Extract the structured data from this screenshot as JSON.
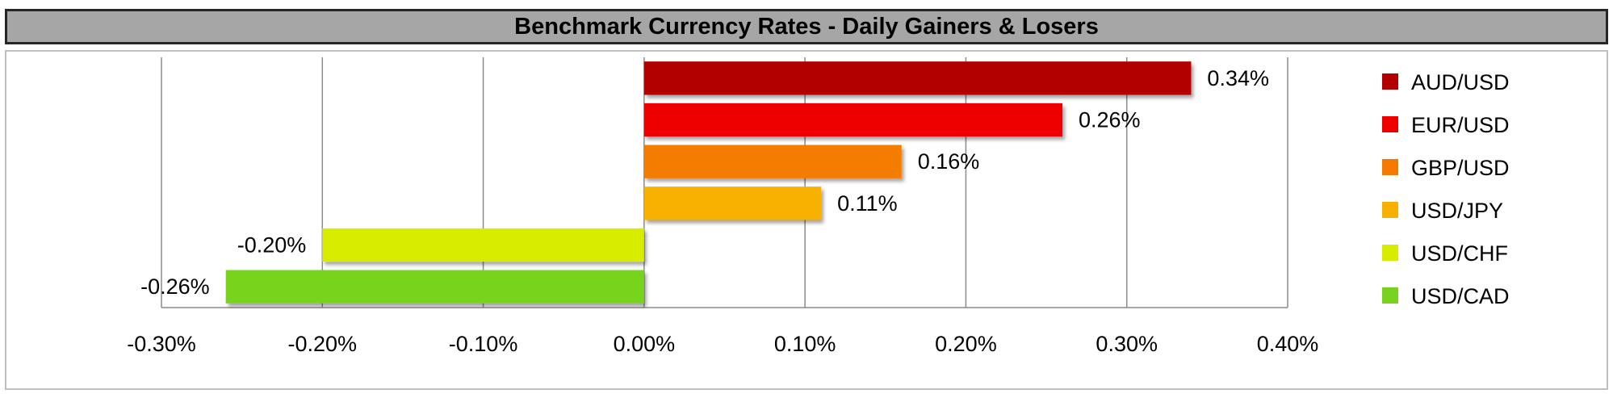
{
  "chart_data": {
    "type": "bar",
    "orientation": "horizontal",
    "title": "Benchmark Currency Rates - Daily Gainers & Losers",
    "categories": [
      "AUD/USD",
      "EUR/USD",
      "GBP/USD",
      "USD/JPY",
      "USD/CHF",
      "USD/CAD"
    ],
    "values": [
      0.34,
      0.26,
      0.16,
      0.11,
      -0.2,
      -0.26
    ],
    "value_labels": [
      "0.34%",
      "0.26%",
      "0.16%",
      "0.11%",
      "-0.20%",
      "-0.26%"
    ],
    "colors": [
      "#b20000",
      "#ee0000",
      "#f47b00",
      "#f7b000",
      "#d8ec00",
      "#77d31f"
    ],
    "xlim": [
      -0.3,
      0.4
    ],
    "xticks": [
      -0.3,
      -0.2,
      -0.1,
      0.0,
      0.1,
      0.2,
      0.3,
      0.4
    ],
    "xtick_labels": [
      "-0.30%",
      "-0.20%",
      "-0.10%",
      "0.00%",
      "0.10%",
      "0.20%",
      "0.30%",
      "0.40%"
    ],
    "grid": true,
    "legend_position": "right",
    "xlabel": "",
    "ylabel": ""
  }
}
